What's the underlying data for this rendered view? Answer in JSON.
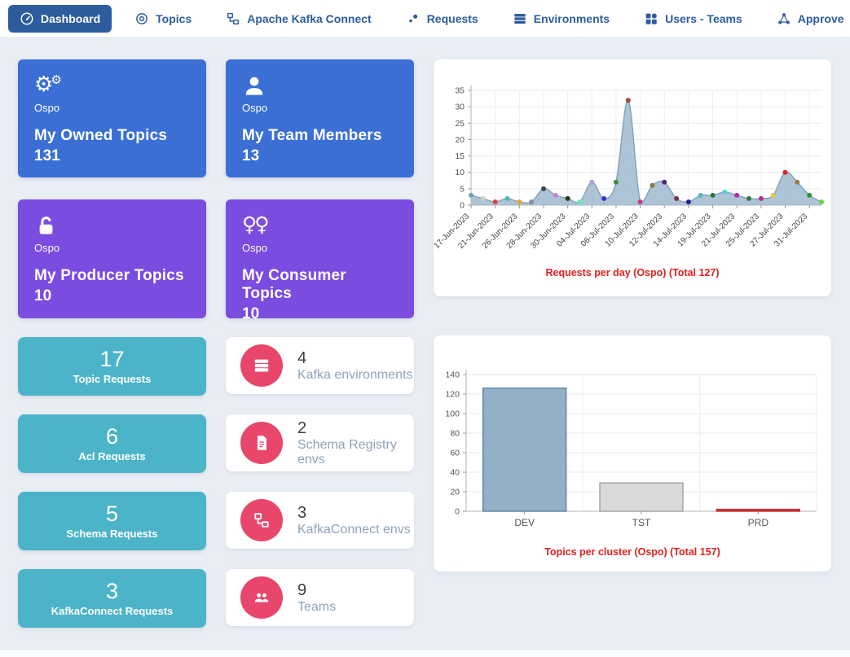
{
  "navbar": {
    "items": [
      {
        "label": "Dashboard",
        "icon": "gauge-icon",
        "active": true
      },
      {
        "label": "Topics",
        "icon": "target-icon",
        "active": false
      },
      {
        "label": "Apache Kafka Connect",
        "icon": "connect-icon",
        "active": false
      },
      {
        "label": "Requests",
        "icon": "dots-icon",
        "active": false
      },
      {
        "label": "Environments",
        "icon": "server-icon",
        "active": false
      },
      {
        "label": "Users - Teams",
        "icon": "grid-icon",
        "active": false
      },
      {
        "label": "Approve",
        "icon": "hub-icon",
        "active": false
      }
    ]
  },
  "stat_cards": [
    {
      "team": "Ospo",
      "title": "My Owned Topics",
      "value": "131",
      "icon": "gears-icon",
      "color": "blue"
    },
    {
      "team": "Ospo",
      "title": "My Team Members",
      "value": "13",
      "icon": "person-icon",
      "color": "blue"
    },
    {
      "team": "Ospo",
      "title": "My Producer Topics",
      "value": "10",
      "icon": "unlock-icon",
      "color": "purple"
    },
    {
      "team": "Ospo",
      "title": "My Consumer Topics",
      "value": "10",
      "icon": "consumers-icon",
      "color": "purple"
    }
  ],
  "request_cards": [
    {
      "value": "17",
      "label": "Topic Requests"
    },
    {
      "value": "6",
      "label": "Acl Requests"
    },
    {
      "value": "5",
      "label": "Schema Requests"
    },
    {
      "value": "3",
      "label": "KafkaConnect Requests"
    }
  ],
  "env_cards": [
    {
      "value": "4",
      "label": "Kafka environments",
      "icon": "server-icon"
    },
    {
      "value": "2",
      "label": "Schema Registry envs",
      "icon": "document-icon"
    },
    {
      "value": "3",
      "label": "KafkaConnect envs",
      "icon": "connect-icon"
    },
    {
      "value": "9",
      "label": "Teams",
      "icon": "group-icon"
    }
  ],
  "chart_data": [
    {
      "type": "area",
      "title": "Requests per day (Ospo) (Total 127)",
      "values": [
        3,
        2,
        1,
        2,
        1,
        1,
        5,
        3,
        2,
        1,
        7,
        2,
        7,
        32,
        1,
        6,
        7,
        2,
        1,
        3,
        3,
        4,
        3,
        2,
        2,
        3,
        10,
        7,
        3,
        1
      ],
      "x_tick_labels": [
        "17-Jun-2023",
        "21-Jun-2023",
        "26-Jun-2023",
        "28-Jun-2023",
        "30-Jun-2023",
        "04-Jul-2023",
        "06-Jul-2023",
        "10-Jul-2023",
        "12-Jul-2023",
        "14-Jul-2023",
        "19-Jul-2023",
        "21-Jul-2023",
        "25-Jul-2023",
        "27-Jul-2023",
        "31-Jul-2023"
      ],
      "label_every": 2,
      "ylim": [
        0,
        35
      ],
      "ytick_step": 5,
      "grid": true,
      "fill": "#a4bed1",
      "stroke": "#83a4bc",
      "point_colors": [
        "#6e9ec0",
        "#cfcfcf",
        "#e04040",
        "#52b8b0",
        "#f0a030",
        "#8e8ea6",
        "#37474f",
        "#c97fd4",
        "#1d3f1d",
        "#66e8b8",
        "#b49ae0",
        "#3636c8",
        "#3d8b40",
        "#a04a46",
        "#c23a8c",
        "#8a7a45",
        "#4a2c78",
        "#7c3042",
        "#2d1b96",
        "#4fb8ae",
        "#2c7a33",
        "#53cfe0",
        "#ad2ea6",
        "#2f7d36",
        "#b0309c",
        "#e6c94a",
        "#e02222",
        "#958148",
        "#2f9636",
        "#68d23a"
      ]
    },
    {
      "type": "bar",
      "title": "Topics per cluster (Ospo) (Total 157)",
      "categories": [
        "DEV",
        "TST",
        "PRD"
      ],
      "values": [
        126,
        29,
        2
      ],
      "ylim": [
        0,
        140
      ],
      "ytick_step": 20,
      "grid": true,
      "bar_colors": [
        "#92b0c8",
        "#d9d9d9",
        "#d03a40"
      ],
      "bar_borders": [
        "#5d82a0",
        "#a0a0a0",
        "#c03038"
      ]
    }
  ],
  "colors": {
    "background": "#e9edf4",
    "nav_blue": "#2d5d9f",
    "nav_active_bg": "#2d5c9e",
    "card_blue": "#3b6fd6",
    "card_purple": "#7a4ce0",
    "card_teal": "#4cb4c8",
    "env_icon_red": "#e8476b",
    "caption_red": "#e02020"
  }
}
